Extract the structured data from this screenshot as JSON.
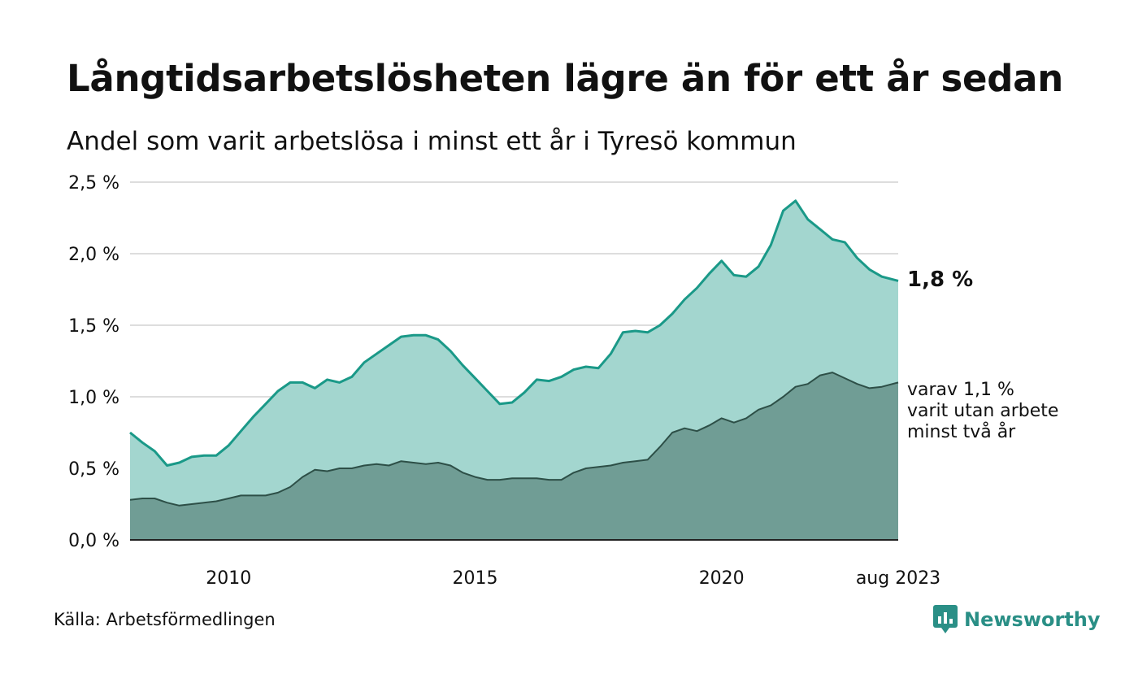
{
  "title": "Långtidsarbetslösheten lägre än för ett år sedan",
  "subtitle": "Andel som varit arbetslösa i minst ett år i Tyresö kommun",
  "source": "Källa: Arbetsförmedlingen",
  "brand": "Newsworthy",
  "colors": {
    "total_line": "#1a9988",
    "total_fill": "#a3d6cf",
    "long_line": "#2d4f47",
    "long_fill": "#709d95",
    "grid": "#dddddd",
    "axis": "#222222"
  },
  "chart_data": {
    "type": "area",
    "ylim": [
      0,
      2.5
    ],
    "yticks": [
      {
        "value": 0.0,
        "label": "0,0 %"
      },
      {
        "value": 0.5,
        "label": "0,5 %"
      },
      {
        "value": 1.0,
        "label": "1,0 %"
      },
      {
        "value": 1.5,
        "label": "1,5 %"
      },
      {
        "value": 2.0,
        "label": "2,0 %"
      },
      {
        "value": 2.5,
        "label": "2,5 %"
      }
    ],
    "xlim": [
      "2008-01",
      "2023-08"
    ],
    "xticks": [
      {
        "value": "2010-01",
        "label": "2010"
      },
      {
        "value": "2015-01",
        "label": "2015"
      },
      {
        "value": "2020-01",
        "label": "2020"
      },
      {
        "value": "2023-08",
        "label": "aug 2023"
      }
    ],
    "grid": true,
    "series": [
      {
        "key": "total",
        "end_label": "1,8 %",
        "points": [
          [
            "2008-01",
            0.75
          ],
          [
            "2008-04",
            0.68
          ],
          [
            "2008-07",
            0.62
          ],
          [
            "2008-10",
            0.52
          ],
          [
            "2009-01",
            0.54
          ],
          [
            "2009-04",
            0.58
          ],
          [
            "2009-07",
            0.59
          ],
          [
            "2009-10",
            0.59
          ],
          [
            "2010-01",
            0.66
          ],
          [
            "2010-04",
            0.76
          ],
          [
            "2010-07",
            0.86
          ],
          [
            "2010-10",
            0.95
          ],
          [
            "2011-01",
            1.04
          ],
          [
            "2011-04",
            1.1
          ],
          [
            "2011-07",
            1.1
          ],
          [
            "2011-10",
            1.06
          ],
          [
            "2012-01",
            1.12
          ],
          [
            "2012-04",
            1.1
          ],
          [
            "2012-07",
            1.14
          ],
          [
            "2012-10",
            1.24
          ],
          [
            "2013-01",
            1.3
          ],
          [
            "2013-04",
            1.36
          ],
          [
            "2013-07",
            1.42
          ],
          [
            "2013-10",
            1.43
          ],
          [
            "2014-01",
            1.43
          ],
          [
            "2014-04",
            1.4
          ],
          [
            "2014-07",
            1.32
          ],
          [
            "2014-10",
            1.22
          ],
          [
            "2015-01",
            1.13
          ],
          [
            "2015-04",
            1.04
          ],
          [
            "2015-07",
            0.95
          ],
          [
            "2015-10",
            0.96
          ],
          [
            "2016-01",
            1.03
          ],
          [
            "2016-04",
            1.12
          ],
          [
            "2016-07",
            1.11
          ],
          [
            "2016-10",
            1.14
          ],
          [
            "2017-01",
            1.19
          ],
          [
            "2017-04",
            1.21
          ],
          [
            "2017-07",
            1.2
          ],
          [
            "2017-10",
            1.3
          ],
          [
            "2018-01",
            1.45
          ],
          [
            "2018-04",
            1.46
          ],
          [
            "2018-07",
            1.45
          ],
          [
            "2018-10",
            1.5
          ],
          [
            "2019-01",
            1.58
          ],
          [
            "2019-04",
            1.68
          ],
          [
            "2019-07",
            1.76
          ],
          [
            "2019-10",
            1.86
          ],
          [
            "2020-01",
            1.95
          ],
          [
            "2020-04",
            1.85
          ],
          [
            "2020-07",
            1.84
          ],
          [
            "2020-10",
            1.91
          ],
          [
            "2021-01",
            2.06
          ],
          [
            "2021-04",
            2.3
          ],
          [
            "2021-07",
            2.37
          ],
          [
            "2021-10",
            2.24
          ],
          [
            "2022-01",
            2.17
          ],
          [
            "2022-04",
            2.1
          ],
          [
            "2022-07",
            2.08
          ],
          [
            "2022-10",
            1.97
          ],
          [
            "2023-01",
            1.89
          ],
          [
            "2023-04",
            1.84
          ],
          [
            "2023-08",
            1.81
          ]
        ]
      },
      {
        "key": "long",
        "end_label_lines": [
          "varav 1,1 %",
          "varit utan arbete",
          "minst två år"
        ],
        "points": [
          [
            "2008-01",
            0.28
          ],
          [
            "2008-04",
            0.29
          ],
          [
            "2008-07",
            0.29
          ],
          [
            "2008-10",
            0.26
          ],
          [
            "2009-01",
            0.24
          ],
          [
            "2009-04",
            0.25
          ],
          [
            "2009-07",
            0.26
          ],
          [
            "2009-10",
            0.27
          ],
          [
            "2010-01",
            0.29
          ],
          [
            "2010-04",
            0.31
          ],
          [
            "2010-07",
            0.31
          ],
          [
            "2010-10",
            0.31
          ],
          [
            "2011-01",
            0.33
          ],
          [
            "2011-04",
            0.37
          ],
          [
            "2011-07",
            0.44
          ],
          [
            "2011-10",
            0.49
          ],
          [
            "2012-01",
            0.48
          ],
          [
            "2012-04",
            0.5
          ],
          [
            "2012-07",
            0.5
          ],
          [
            "2012-10",
            0.52
          ],
          [
            "2013-01",
            0.53
          ],
          [
            "2013-04",
            0.52
          ],
          [
            "2013-07",
            0.55
          ],
          [
            "2013-10",
            0.54
          ],
          [
            "2014-01",
            0.53
          ],
          [
            "2014-04",
            0.54
          ],
          [
            "2014-07",
            0.52
          ],
          [
            "2014-10",
            0.47
          ],
          [
            "2015-01",
            0.44
          ],
          [
            "2015-04",
            0.42
          ],
          [
            "2015-07",
            0.42
          ],
          [
            "2015-10",
            0.43
          ],
          [
            "2016-01",
            0.43
          ],
          [
            "2016-04",
            0.43
          ],
          [
            "2016-07",
            0.42
          ],
          [
            "2016-10",
            0.42
          ],
          [
            "2017-01",
            0.47
          ],
          [
            "2017-04",
            0.5
          ],
          [
            "2017-07",
            0.51
          ],
          [
            "2017-10",
            0.52
          ],
          [
            "2018-01",
            0.54
          ],
          [
            "2018-04",
            0.55
          ],
          [
            "2018-07",
            0.56
          ],
          [
            "2018-10",
            0.65
          ],
          [
            "2019-01",
            0.75
          ],
          [
            "2019-04",
            0.78
          ],
          [
            "2019-07",
            0.76
          ],
          [
            "2019-10",
            0.8
          ],
          [
            "2020-01",
            0.85
          ],
          [
            "2020-04",
            0.82
          ],
          [
            "2020-07",
            0.85
          ],
          [
            "2020-10",
            0.91
          ],
          [
            "2021-01",
            0.94
          ],
          [
            "2021-04",
            1.0
          ],
          [
            "2021-07",
            1.07
          ],
          [
            "2021-10",
            1.09
          ],
          [
            "2022-01",
            1.15
          ],
          [
            "2022-04",
            1.17
          ],
          [
            "2022-07",
            1.13
          ],
          [
            "2022-10",
            1.09
          ],
          [
            "2023-01",
            1.06
          ],
          [
            "2023-04",
            1.07
          ],
          [
            "2023-08",
            1.1
          ]
        ]
      }
    ]
  }
}
